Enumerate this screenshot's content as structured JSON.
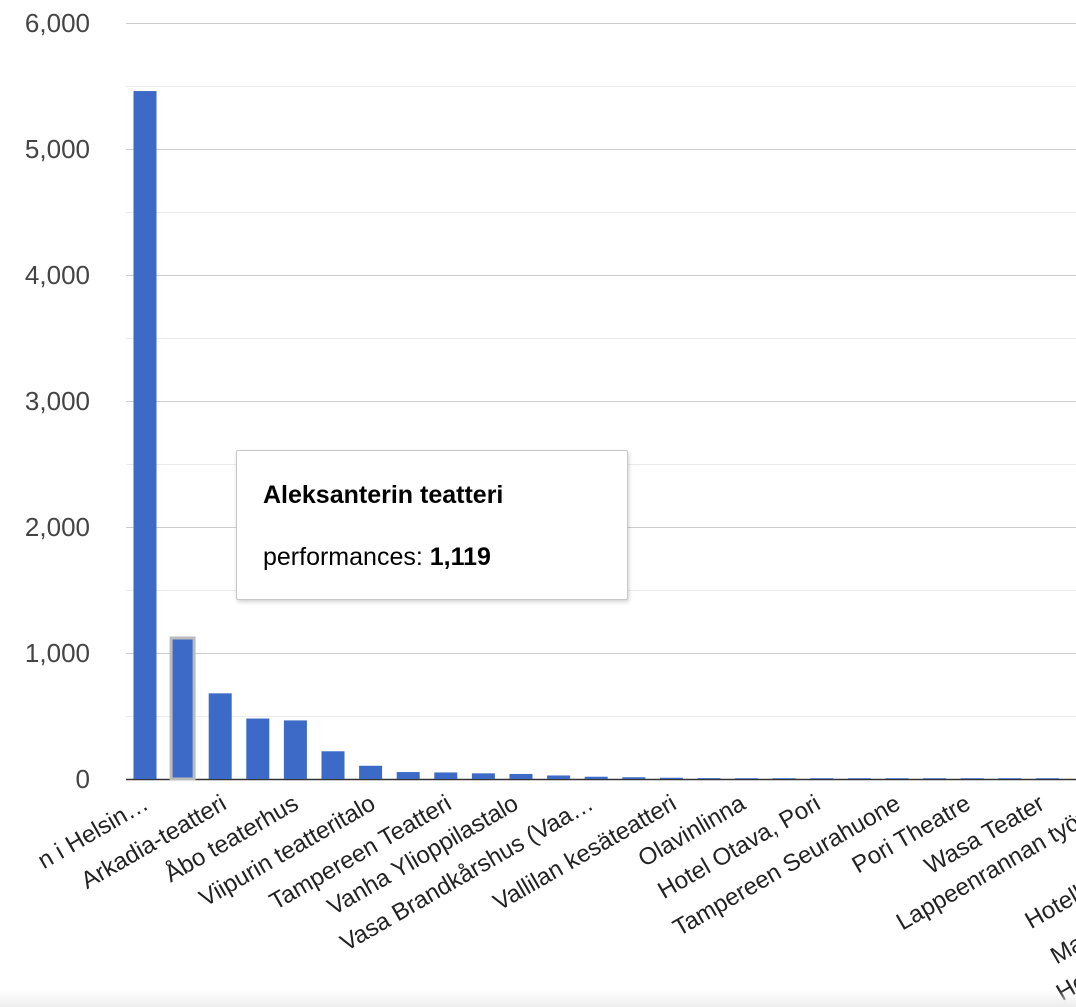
{
  "chart_data": {
    "type": "bar",
    "ylim": [
      0,
      6000
    ],
    "yticks": [
      "6,000",
      "5,000",
      "4,000",
      "3,000",
      "2,000",
      "1,000",
      "0"
    ],
    "ytick_values": [
      6000,
      5000,
      4000,
      3000,
      2000,
      1000,
      0
    ],
    "grid": true,
    "bar_color": "#3d6ac6",
    "categories": [
      "Svenska Teatern i Helsin…",
      "Aleksanterin teatteri",
      "Arkadia-teatteri",
      "unlabeled-4",
      "Åbo teaterhus",
      "unlabeled-6",
      "Viipurin teatteritalo",
      "unlabeled-8",
      "Tampereen Teatteri",
      "Vanha Ylioppilastalo",
      "Vasa Brandkårshus (Vaa…",
      "unlabeled-12",
      "Vallilan kesäteatteri",
      "unlabeled-14",
      "Olavinlinna",
      "Hotel Otava, Pori",
      "Tampereen Seurahuone",
      "unlabeled-18",
      "Pori Theatre",
      "unlabeled-20",
      "Wasa Teater",
      "Lappeenrannan työväe…",
      "Hotelli Se…",
      "Marieh…",
      "Helsin…"
    ],
    "x_labels": [
      "n i Helsin…",
      "Arkadia-teatteri",
      "Åbo teaterhus",
      "Viipurin teatteritalo",
      "Tampereen Teatteri",
      "Vanha Ylioppilastalo",
      "Vasa Brandkårshus (Vaa…",
      "Vallilan kesäteatteri",
      "Olavinlinna",
      "Hotel Otava, Pori",
      "Tampereen Seurahuone",
      "Pori Theatre",
      "Wasa Teater",
      "Lappeenrannan työväe",
      "Hotelli Se",
      "Marieh",
      "Helsin"
    ],
    "series": [
      {
        "name": "performances",
        "values": [
          5460,
          1119,
          680,
          480,
          465,
          220,
          105,
          55,
          52,
          45,
          40,
          28,
          18,
          14,
          10,
          7,
          5,
          4,
          3,
          3,
          2,
          2,
          2,
          1,
          1
        ]
      }
    ],
    "highlighted_index": 1
  },
  "tooltip": {
    "title": "Aleksanterin teatteri",
    "series_label": "performances: ",
    "value": "1,119"
  }
}
